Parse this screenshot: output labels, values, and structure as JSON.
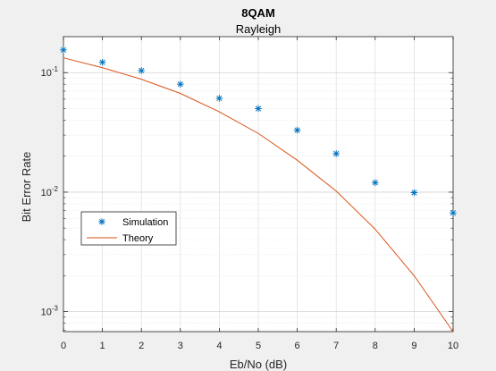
{
  "chart_data": {
    "type": "scatter",
    "title": "8QAM",
    "subtitle": "Rayleigh",
    "xlabel": "Eb/No (dB)",
    "ylabel": "Bit Error Rate",
    "xlim": [
      0,
      10
    ],
    "ylim": [
      0.00068,
      0.2
    ],
    "yscale": "log",
    "grid": true,
    "legend_position": "left-center",
    "xticks": [
      0,
      1,
      2,
      3,
      4,
      5,
      6,
      7,
      8,
      9,
      10
    ],
    "yticks": [
      {
        "value": 0.001,
        "base": "10",
        "exp": "-3"
      },
      {
        "value": 0.01,
        "base": "10",
        "exp": "-2"
      },
      {
        "value": 0.1,
        "base": "10",
        "exp": "-1"
      }
    ],
    "series": [
      {
        "name": "Simulation",
        "style": "markers",
        "marker": "asterisk",
        "color": "#0072bd",
        "x": [
          0,
          1,
          2,
          3,
          4,
          5,
          6,
          7,
          8,
          9,
          10
        ],
        "y": [
          0.155,
          0.122,
          0.104,
          0.08,
          0.061,
          0.05,
          0.033,
          0.021,
          0.012,
          0.0099,
          0.0067
        ]
      },
      {
        "name": "Theory",
        "style": "line",
        "color": "#d95319",
        "x": [
          0,
          1,
          2,
          3,
          4,
          5,
          6,
          7,
          8,
          9,
          10
        ],
        "y": [
          0.133,
          0.11,
          0.088,
          0.067,
          0.047,
          0.031,
          0.0185,
          0.0102,
          0.0049,
          0.002,
          0.00068
        ]
      }
    ]
  }
}
